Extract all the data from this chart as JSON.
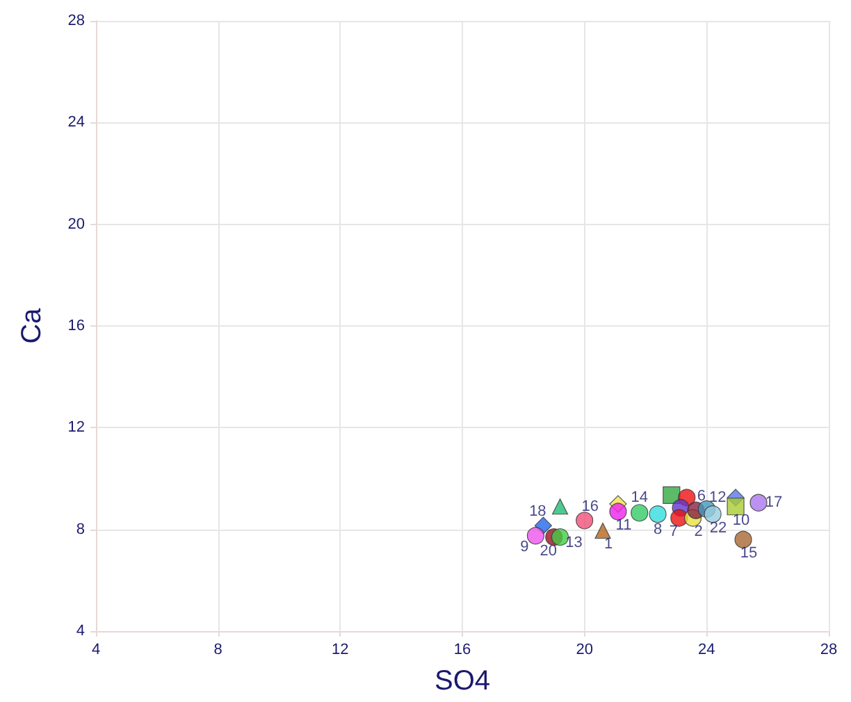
{
  "chart_data": {
    "type": "scatter",
    "xlabel": "SO4",
    "ylabel": "Ca",
    "xlim": [
      4,
      28
    ],
    "xticks": [
      4,
      8,
      12,
      16,
      20,
      24,
      28
    ],
    "ylim": [
      4,
      28
    ],
    "yticks": [
      4,
      8,
      12,
      16,
      20,
      24,
      28
    ],
    "grid": true,
    "marker": "circle",
    "series": [
      {
        "name": "1",
        "color": "#b5651d",
        "marker": "triangle",
        "x": [
          20.6
        ],
        "values": [
          7.95
        ]
      },
      {
        "name": "16",
        "color": "#f0507a",
        "x": [
          20.0
        ],
        "values": [
          8.35
        ]
      },
      {
        "color": "#f5e050",
        "marker": "diamond",
        "x": [
          21.1
        ],
        "values": [
          9.0
        ]
      },
      {
        "name": "11",
        "color": "#ee22ee",
        "x": [
          21.1
        ],
        "values": [
          8.7
        ]
      },
      {
        "name": "14",
        "color": "#33cc66",
        "x": [
          21.8
        ],
        "values": [
          8.65
        ]
      },
      {
        "name": "8",
        "color": "#33dddd",
        "x": [
          22.4
        ],
        "values": [
          8.6
        ]
      },
      {
        "color": "#33aa44",
        "marker": "square",
        "x": [
          22.85
        ],
        "values": [
          9.35
        ]
      },
      {
        "color": "#ee1111",
        "x": [
          23.35
        ],
        "values": [
          9.25
        ]
      },
      {
        "color": "#6633cc",
        "x": [
          23.15
        ],
        "values": [
          8.85
        ]
      },
      {
        "name": "7",
        "color": "#ee1111",
        "x": [
          23.1
        ],
        "values": [
          8.45
        ]
      },
      {
        "name": "2",
        "color": "#e8e040",
        "x": [
          23.55
        ],
        "values": [
          8.45
        ]
      },
      {
        "name": "6",
        "color": "#882244",
        "x": [
          23.65
        ],
        "values": [
          8.75
        ]
      },
      {
        "name": "12",
        "color": "#4499bb",
        "x": [
          24.0
        ],
        "values": [
          8.8
        ]
      },
      {
        "name": "22",
        "color": "#99ccdd",
        "x": [
          24.2
        ],
        "values": [
          8.6
        ]
      },
      {
        "color": "#5577ee",
        "marker": "diamond",
        "x": [
          24.95
        ],
        "values": [
          9.25
        ]
      },
      {
        "name": "10",
        "color": "#aacc33",
        "marker": "square",
        "x": [
          24.95
        ],
        "values": [
          8.9
        ]
      },
      {
        "name": "17",
        "color": "#aa77ee",
        "x": [
          25.7
        ],
        "values": [
          9.05
        ]
      },
      {
        "name": "15",
        "color": "#aa6633",
        "x": [
          25.2
        ],
        "values": [
          7.6
        ]
      },
      {
        "color": "#22bb77",
        "marker": "triangle",
        "x": [
          19.2
        ],
        "values": [
          8.9
        ]
      },
      {
        "name": "18",
        "color": "#2266ee",
        "marker": "diamond",
        "x": [
          18.65
        ],
        "values": [
          8.15
        ]
      },
      {
        "name": "9",
        "color": "#ee55ee",
        "x": [
          18.4
        ],
        "values": [
          7.75
        ]
      },
      {
        "name": "20",
        "color": "#991122",
        "x": [
          19.0
        ],
        "values": [
          7.7
        ]
      },
      {
        "name": "13",
        "color": "#44cc44",
        "x": [
          19.2
        ],
        "values": [
          7.7
        ]
      }
    ]
  }
}
